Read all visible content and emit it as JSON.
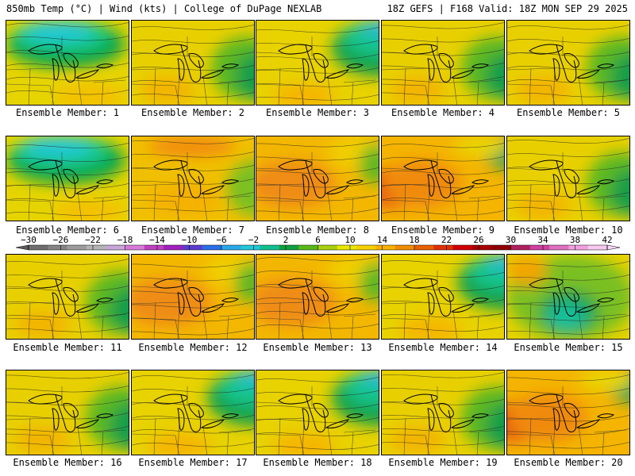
{
  "header": {
    "left": "850mb Temp (°C) | Wind (kts) | College of DuPage NEXLAB",
    "right": "18Z GEFS | F168 Valid: 18Z MON SEP 29 2025"
  },
  "members": [
    {
      "label": "Ensemble Member: 1",
      "scheme": "cold_nw"
    },
    {
      "label": "Ensemble Member: 2",
      "scheme": "green_east"
    },
    {
      "label": "Ensemble Member: 3",
      "scheme": "cold_ne"
    },
    {
      "label": "Ensemble Member: 4",
      "scheme": "green_east"
    },
    {
      "label": "Ensemble Member: 5",
      "scheme": "green_east"
    },
    {
      "label": "Ensemble Member: 6",
      "scheme": "cold_nw"
    },
    {
      "label": "Ensemble Member: 7",
      "scheme": "warm_nw"
    },
    {
      "label": "Ensemble Member: 8",
      "scheme": "warm_w"
    },
    {
      "label": "Ensemble Member: 9",
      "scheme": "hot_w"
    },
    {
      "label": "Ensemble Member: 10",
      "scheme": "green_east"
    },
    {
      "label": "Ensemble Member: 11",
      "scheme": "green_east"
    },
    {
      "label": "Ensemble Member: 12",
      "scheme": "warm_w"
    },
    {
      "label": "Ensemble Member: 13",
      "scheme": "warm_w"
    },
    {
      "label": "Ensemble Member: 14",
      "scheme": "cold_ne"
    },
    {
      "label": "Ensemble Member: 15",
      "scheme": "low_center"
    },
    {
      "label": "Ensemble Member: 16",
      "scheme": "green_east"
    },
    {
      "label": "Ensemble Member: 17",
      "scheme": "cold_ne"
    },
    {
      "label": "Ensemble Member: 18",
      "scheme": "cold_ne"
    },
    {
      "label": "Ensemble Member: 19",
      "scheme": "green_east"
    },
    {
      "label": "Ensemble Member: 20",
      "scheme": "hot_w"
    }
  ],
  "colorbar": {
    "tick_labels": [
      "−30",
      "−26",
      "−22",
      "−18",
      "−14",
      "−10",
      "−6",
      "−2",
      "2",
      "6",
      "10",
      "14",
      "18",
      "22",
      "26",
      "30",
      "34",
      "38",
      "42"
    ],
    "min": -30,
    "max": 42,
    "step": 4,
    "colors": [
      "#6e6e6e",
      "#858585",
      "#9c9c9c",
      "#b4b4b4",
      "#c7a6d8",
      "#d77ad8",
      "#c040c0",
      "#a020c0",
      "#5a3cd0",
      "#2a6ee8",
      "#28a8e8",
      "#20c8d8",
      "#10c090",
      "#10a040",
      "#58b818",
      "#a8d010",
      "#e8e800",
      "#f8d000",
      "#f8b000",
      "#f08c00",
      "#e86000",
      "#e03000",
      "#d00000",
      "#a80000",
      "#900000",
      "#b02060",
      "#d040a0",
      "#e070c0",
      "#f0a0e0",
      "#f8c8f0"
    ],
    "colors_note_excluded": false
  }
}
